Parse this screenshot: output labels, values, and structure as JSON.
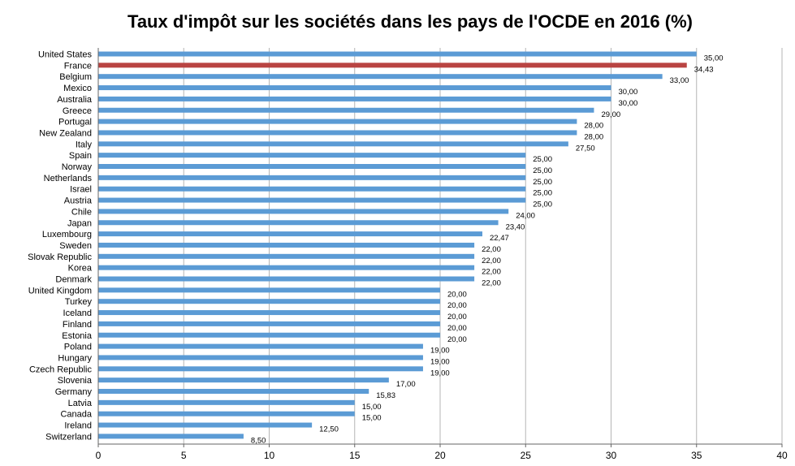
{
  "chart_data": {
    "type": "bar",
    "orientation": "horizontal",
    "title": "Taux d'impôt sur les sociétés dans les pays de l'OCDE en 2016 (%)",
    "xlim": [
      0,
      40
    ],
    "x_ticks": [
      0,
      5,
      10,
      15,
      20,
      25,
      30,
      35,
      40
    ],
    "grid": true,
    "colors": {
      "default": "#5b9bd5",
      "highlight": "#b94442"
    },
    "highlight": "France",
    "categories": [
      "United States",
      "France",
      "Belgium",
      "Mexico",
      "Australia",
      "Greece",
      "Portugal",
      "New Zealand",
      "Italy",
      "Spain",
      "Norway",
      "Netherlands",
      "Israel",
      "Austria",
      "Chile",
      "Japan",
      "Luxembourg",
      "Sweden",
      "Slovak Republic",
      "Korea",
      "Denmark",
      "United Kingdom",
      "Turkey",
      "Iceland",
      "Finland",
      "Estonia",
      "Poland",
      "Hungary",
      "Czech Republic",
      "Slovenia",
      "Germany",
      "Latvia",
      "Canada",
      "Ireland",
      "Switzerland"
    ],
    "values": [
      35.0,
      34.43,
      33.0,
      30.0,
      30.0,
      29.0,
      28.0,
      28.0,
      27.5,
      25.0,
      25.0,
      25.0,
      25.0,
      25.0,
      24.0,
      23.4,
      22.47,
      22.0,
      22.0,
      22.0,
      22.0,
      20.0,
      20.0,
      20.0,
      20.0,
      20.0,
      19.0,
      19.0,
      19.0,
      17.0,
      15.83,
      15.0,
      15.0,
      12.5,
      8.5
    ],
    "value_labels": [
      "35,00",
      "34,43",
      "33,00",
      "30,00",
      "30,00",
      "29,00",
      "28,00",
      "28,00",
      "27,50",
      "25,00",
      "25,00",
      "25,00",
      "25,00",
      "25,00",
      "24,00",
      "23,40",
      "22,47",
      "22,00",
      "22,00",
      "22,00",
      "22,00",
      "20,00",
      "20,00",
      "20,00",
      "20,00",
      "20,00",
      "19,00",
      "19,00",
      "19,00",
      "17,00",
      "15,83",
      "15,00",
      "15,00",
      "12,50",
      "8,50"
    ]
  }
}
